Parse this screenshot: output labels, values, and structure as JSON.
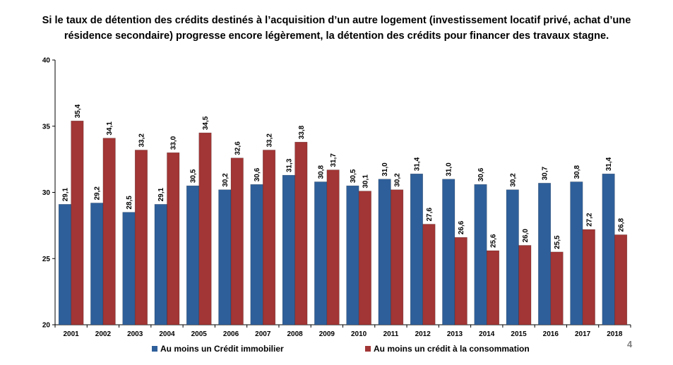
{
  "page": {
    "title_line1": "Si le taux de détention des crédits destinés à l’acquisition d’un autre logement (investissement locatif privé, achat d’une",
    "title_line2": "résidence secondaire) progresse encore légèrement, la détention des crédits pour financer des travaux stagne.",
    "page_number": "4"
  },
  "colors": {
    "series1": "#2e5f9a",
    "series2": "#a23535"
  },
  "chart_data": {
    "type": "bar",
    "title": "Si le taux de détention des crédits destinés à l’acquisition d’un autre logement (investissement locatif privé, achat d’une résidence secondaire) progresse encore légèrement, la détention des crédits pour financer des travaux stagne.",
    "categories": [
      "2001",
      "2002",
      "2003",
      "2004",
      "2005",
      "2006",
      "2007",
      "2008",
      "2009",
      "2010",
      "2011",
      "2012",
      "2013",
      "2014",
      "2015",
      "2016",
      "2017",
      "2018"
    ],
    "series": [
      {
        "name": "Au moins un Crédit immobilier",
        "values": [
          29.1,
          29.2,
          28.5,
          29.1,
          30.5,
          30.2,
          30.6,
          31.3,
          30.8,
          30.5,
          31.0,
          31.4,
          31.0,
          30.6,
          30.2,
          30.7,
          30.8,
          31.4
        ],
        "labels": [
          "29,1",
          "29,2",
          "28,5",
          "29,1",
          "30,5",
          "30,2",
          "30,6",
          "31,3",
          "30,8",
          "30,5",
          "31,0",
          "31,4",
          "31,0",
          "30,6",
          "30,2",
          "30,7",
          "30,8",
          "31,4"
        ]
      },
      {
        "name": "Au moins un crédit à la consommation",
        "values": [
          35.4,
          34.1,
          33.2,
          33.0,
          34.5,
          32.6,
          33.2,
          33.8,
          31.7,
          30.1,
          30.2,
          27.6,
          26.6,
          25.6,
          26.0,
          25.5,
          27.2,
          26.8
        ],
        "labels": [
          "35,4",
          "34,1",
          "33,2",
          "33,0",
          "34,5",
          "32,6",
          "33,2",
          "33,8",
          "31,7",
          "30,1",
          "30,2",
          "27,6",
          "26,6",
          "25,6",
          "26,0",
          "25,5",
          "27,2",
          "26,8"
        ]
      }
    ],
    "ylim": [
      20,
      40
    ],
    "yticks": [
      20,
      25,
      30,
      35,
      40
    ],
    "ytick_labels": [
      "20",
      "25",
      "30",
      "35",
      "40"
    ],
    "grid": false,
    "legend_position": "bottom"
  }
}
